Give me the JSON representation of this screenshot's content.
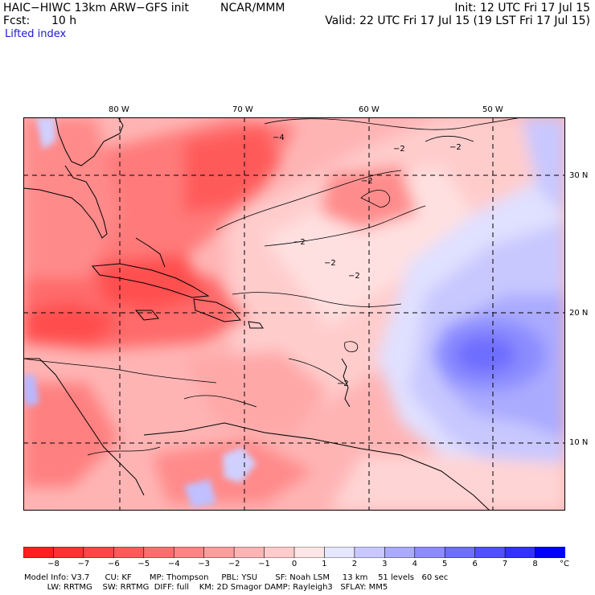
{
  "header": {
    "model": "HAIC−HIWC 13km ARW−GFS init",
    "org": "NCAR/MMM",
    "init": "Init: 12 UTC Fri 17 Jul 15",
    "fcst_label": "Fcst:",
    "fcst_value": "10 h",
    "valid": "Valid: 22 UTC Fri 17 Jul 15 (19 LST Fri 17 Jul 15)",
    "field": "Lifted index"
  },
  "map": {
    "lon_labels": [
      "80 W",
      "70 W",
      "60 W",
      "50 W"
    ],
    "lat_labels": [
      "30 N",
      "20 N",
      "10 N"
    ],
    "contour_labels": [
      "−2",
      "−2",
      "−2",
      "−2",
      "−2",
      "−2",
      "−2",
      "−4"
    ]
  },
  "colorbar": {
    "levels": [
      "−8",
      "−7",
      "−6",
      "−5",
      "−4",
      "−3",
      "−2",
      "−1",
      "0",
      "1",
      "2",
      "3",
      "4",
      "5",
      "6",
      "7",
      "8"
    ],
    "unit": "°C",
    "colors": [
      "#ff1e1e",
      "#ff3232",
      "#ff4646",
      "#ff5a5a",
      "#ff6e6e",
      "#ff8484",
      "#ff9c9c",
      "#ffb4b4",
      "#ffcccc",
      "#ffe6e6",
      "#e6e6ff",
      "#c8c8ff",
      "#aaaaff",
      "#8c8cff",
      "#6e6eff",
      "#5050ff",
      "#3232ff",
      "#0000ff"
    ]
  },
  "info": {
    "line1": "Model Info: V3.7      CU: KF       MP: Thompson     PBL: YSU       SF: Noah LSM     13 km    51 levels   60 sec",
    "line2": "         LW: RRTMG    SW: RRTMG  DIFF: full    KM: 2D Smagor DAMP: Rayleigh3   SFLAY: MM5"
  }
}
